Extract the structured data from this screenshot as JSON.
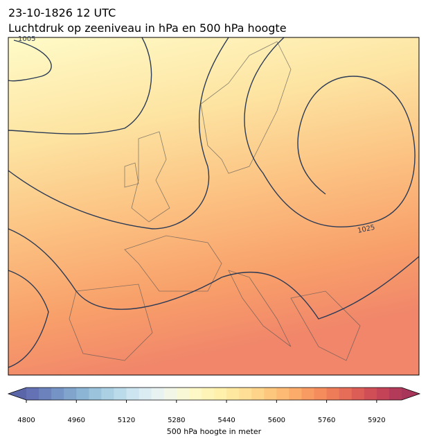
{
  "header": {
    "title": [
      "23-10-1826 12 UTC",
      "Luchtdruk op zeeniveau in hPa en 500 hPa hoogte"
    ]
  },
  "map": {
    "contour_labels": [
      "1005",
      "1025"
    ]
  },
  "colorbar": {
    "label": "500 hPa hoogte in meter",
    "range": [
      4800,
      6000
    ],
    "ticks": [
      4800,
      4960,
      5120,
      5280,
      5440,
      5600,
      5760,
      5920
    ],
    "colors": [
      "#6471b4",
      "#6b82bc",
      "#7593c4",
      "#80a4cc",
      "#8cb4d4",
      "#9bc3dc",
      "#abd0e3",
      "#bcdbea",
      "#cce5f0",
      "#dcecf3",
      "#e8f2f0",
      "#f1f6e6",
      "#f8f8d6",
      "#fdf8c6",
      "#fef4b8",
      "#fff0ab",
      "#fee8a0",
      "#fedf95",
      "#fdd48a",
      "#fdc77e",
      "#fcba74",
      "#fbab6a",
      "#f89b62",
      "#f48c5c",
      "#ee7c58",
      "#e66d57",
      "#dc5d56",
      "#d04f56",
      "#c44357",
      "#b33a58"
    ],
    "under_color": "#5b66a8",
    "over_color": "#a8365a"
  }
}
